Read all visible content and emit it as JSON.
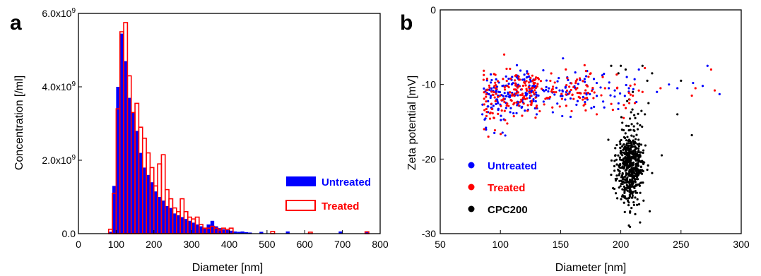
{
  "chart_data": [
    {
      "type": "bar",
      "panel_label": "a",
      "xlabel": "Diameter [nm]",
      "ylabel": "Concentration [/ml]",
      "xlim": [
        0,
        800
      ],
      "ylim": [
        0,
        6000000000.0
      ],
      "xticks": [
        0,
        100,
        200,
        300,
        400,
        500,
        600,
        700,
        800
      ],
      "xtick_labels": [
        "0",
        "100",
        "200",
        "300",
        "400",
        "500",
        "600",
        "700",
        "800"
      ],
      "yticks": [
        0,
        2000000000.0,
        4000000000.0,
        6000000000.0
      ],
      "ytick_labels": [
        "0.0",
        "2.0x10",
        "4.0x10",
        "6.0x10"
      ],
      "ytick_exponents": [
        "",
        "9",
        "9",
        "9"
      ],
      "bin_width": 10,
      "series": [
        {
          "name": "Untreated",
          "style": "filled",
          "color": "#0000ff",
          "x": [
            80,
            90,
            100,
            110,
            120,
            130,
            140,
            150,
            160,
            170,
            180,
            190,
            200,
            210,
            220,
            230,
            240,
            250,
            260,
            270,
            280,
            290,
            300,
            310,
            320,
            330,
            340,
            350,
            360,
            370,
            380,
            390,
            400,
            410,
            420,
            430,
            440,
            450,
            480,
            550,
            690,
            760
          ],
          "values": [
            50000000.0,
            1300000000.0,
            4000000000.0,
            5450000000.0,
            4700000000.0,
            3700000000.0,
            3300000000.0,
            2800000000.0,
            2200000000.0,
            1800000000.0,
            1600000000.0,
            1400000000.0,
            1150000000.0,
            1000000000.0,
            900000000.0,
            750000000.0,
            700000000.0,
            550000000.0,
            500000000.0,
            450000000.0,
            400000000.0,
            350000000.0,
            300000000.0,
            250000000.0,
            200000000.0,
            150000000.0,
            250000000.0,
            350000000.0,
            200000000.0,
            150000000.0,
            120000000.0,
            100000000.0,
            80000000.0,
            60000000.0,
            50000000.0,
            60000000.0,
            40000000.0,
            30000000.0,
            50000000.0,
            60000000.0,
            60000000.0,
            60000000.0
          ]
        },
        {
          "name": "Treated",
          "style": "outline",
          "color": "#ff0000",
          "x": [
            80,
            90,
            100,
            110,
            120,
            130,
            140,
            150,
            160,
            170,
            180,
            190,
            200,
            210,
            220,
            230,
            240,
            250,
            260,
            270,
            280,
            290,
            300,
            310,
            320,
            330,
            340,
            350,
            360,
            370,
            380,
            390,
            400,
            510,
            610,
            760
          ],
          "values": [
            120000000.0,
            1100000000.0,
            3400000000.0,
            5500000000.0,
            5750000000.0,
            4300000000.0,
            3300000000.0,
            3550000000.0,
            2900000000.0,
            2600000000.0,
            2200000000.0,
            1800000000.0,
            1300000000.0,
            1900000000.0,
            2150000000.0,
            1200000000.0,
            950000000.0,
            700000000.0,
            600000000.0,
            950000000.0,
            600000000.0,
            450000000.0,
            400000000.0,
            450000000.0,
            250000000.0,
            150000000.0,
            150000000.0,
            200000000.0,
            150000000.0,
            100000000.0,
            150000000.0,
            120000000.0,
            150000000.0,
            60000000.0,
            40000000.0,
            50000000.0
          ]
        }
      ],
      "legend": "right",
      "colors": {
        "untreated": "#0000ff",
        "treated": "#ff0000"
      }
    },
    {
      "type": "scatter",
      "panel_label": "b",
      "xlabel": "Diameter [nm]",
      "ylabel": "Zeta potential [mV]",
      "xlim": [
        50,
        300
      ],
      "ylim": [
        -30,
        0
      ],
      "xticks": [
        50,
        100,
        150,
        200,
        250,
        300
      ],
      "xtick_labels": [
        "50",
        "100",
        "150",
        "200",
        "250",
        "300"
      ],
      "yticks": [
        0,
        -10,
        -20,
        -30
      ],
      "ytick_labels": [
        "0",
        "-10",
        "-20",
        "-30"
      ],
      "series": [
        {
          "name": "Untreated",
          "color": "#0000ff",
          "count": 240,
          "x": [
            152,
            172,
            180,
            190,
            195,
            205,
            215,
            230,
            247,
            272,
            282,
            268,
            260,
            85,
            88,
            95,
            240
          ],
          "y": [
            -6.5,
            -8.2,
            -9.8,
            -10.5,
            -10.8,
            -9.0,
            -8.0,
            -11.0,
            -10.5,
            -7.5,
            -11.3,
            -10.2,
            -9.8,
            -14.0,
            -15.8,
            -16.5,
            -10.0
          ]
        },
        {
          "name": "Treated",
          "color": "#ff0000",
          "count": 240,
          "x": [
            180,
            185,
            197,
            207,
            218,
            233,
            259,
            275,
            262,
            278,
            220,
            210,
            175,
            90
          ],
          "y": [
            -14.0,
            -9.0,
            -10.5,
            -12.5,
            -11.0,
            -10.5,
            -11.5,
            -8.0,
            -10.5,
            -10.8,
            -7.8,
            -11.5,
            -8.5,
            -17.0
          ]
        },
        {
          "name": "CPC200",
          "color": "#000000",
          "count": 520,
          "x": [
            192,
            198,
            200,
            204,
            207,
            210,
            212,
            214,
            216,
            218,
            220,
            222,
            223,
            224,
            226,
            234,
            247,
            259,
            250
          ],
          "y": [
            -7.5,
            -8.5,
            -7.5,
            -8.0,
            -12.0,
            -11.0,
            -14.5,
            -16.0,
            -28.5,
            -7.5,
            -14.0,
            -9.5,
            -12.5,
            -27.0,
            -8.5,
            -19.5,
            -14.0,
            -16.8,
            -9.5
          ]
        }
      ],
      "legend": "bottom-left",
      "colors": {
        "untreated": "#0000ff",
        "treated": "#ff0000",
        "cpc200": "#000000"
      }
    }
  ]
}
